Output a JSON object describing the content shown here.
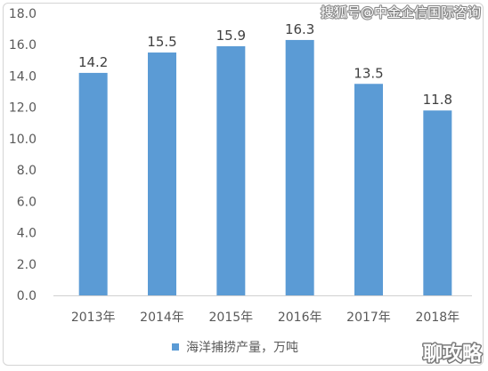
{
  "chart_data": {
    "type": "bar",
    "categories": [
      "2013年",
      "2014年",
      "2015年",
      "2016年",
      "2017年",
      "2018年"
    ],
    "series": [
      {
        "name": "海洋捕捞产量，万吨",
        "values": [
          14.2,
          15.5,
          15.9,
          16.3,
          13.5,
          11.8
        ]
      }
    ],
    "data_labels": [
      "14.2",
      "15.5",
      "15.9",
      "16.3",
      "13.5",
      "11.8"
    ],
    "y_ticks": [
      "0.0",
      "2.0",
      "4.0",
      "6.0",
      "8.0",
      "10.0",
      "12.0",
      "14.0",
      "16.0",
      "18.0"
    ],
    "ylim": [
      0,
      18
    ],
    "grid": false,
    "legend_position": "bottom",
    "bar_color": "#5b9bd5"
  },
  "watermark": {
    "top_right": "搜狐号@中金企信国际咨询",
    "bottom_right": "聊攻略"
  }
}
